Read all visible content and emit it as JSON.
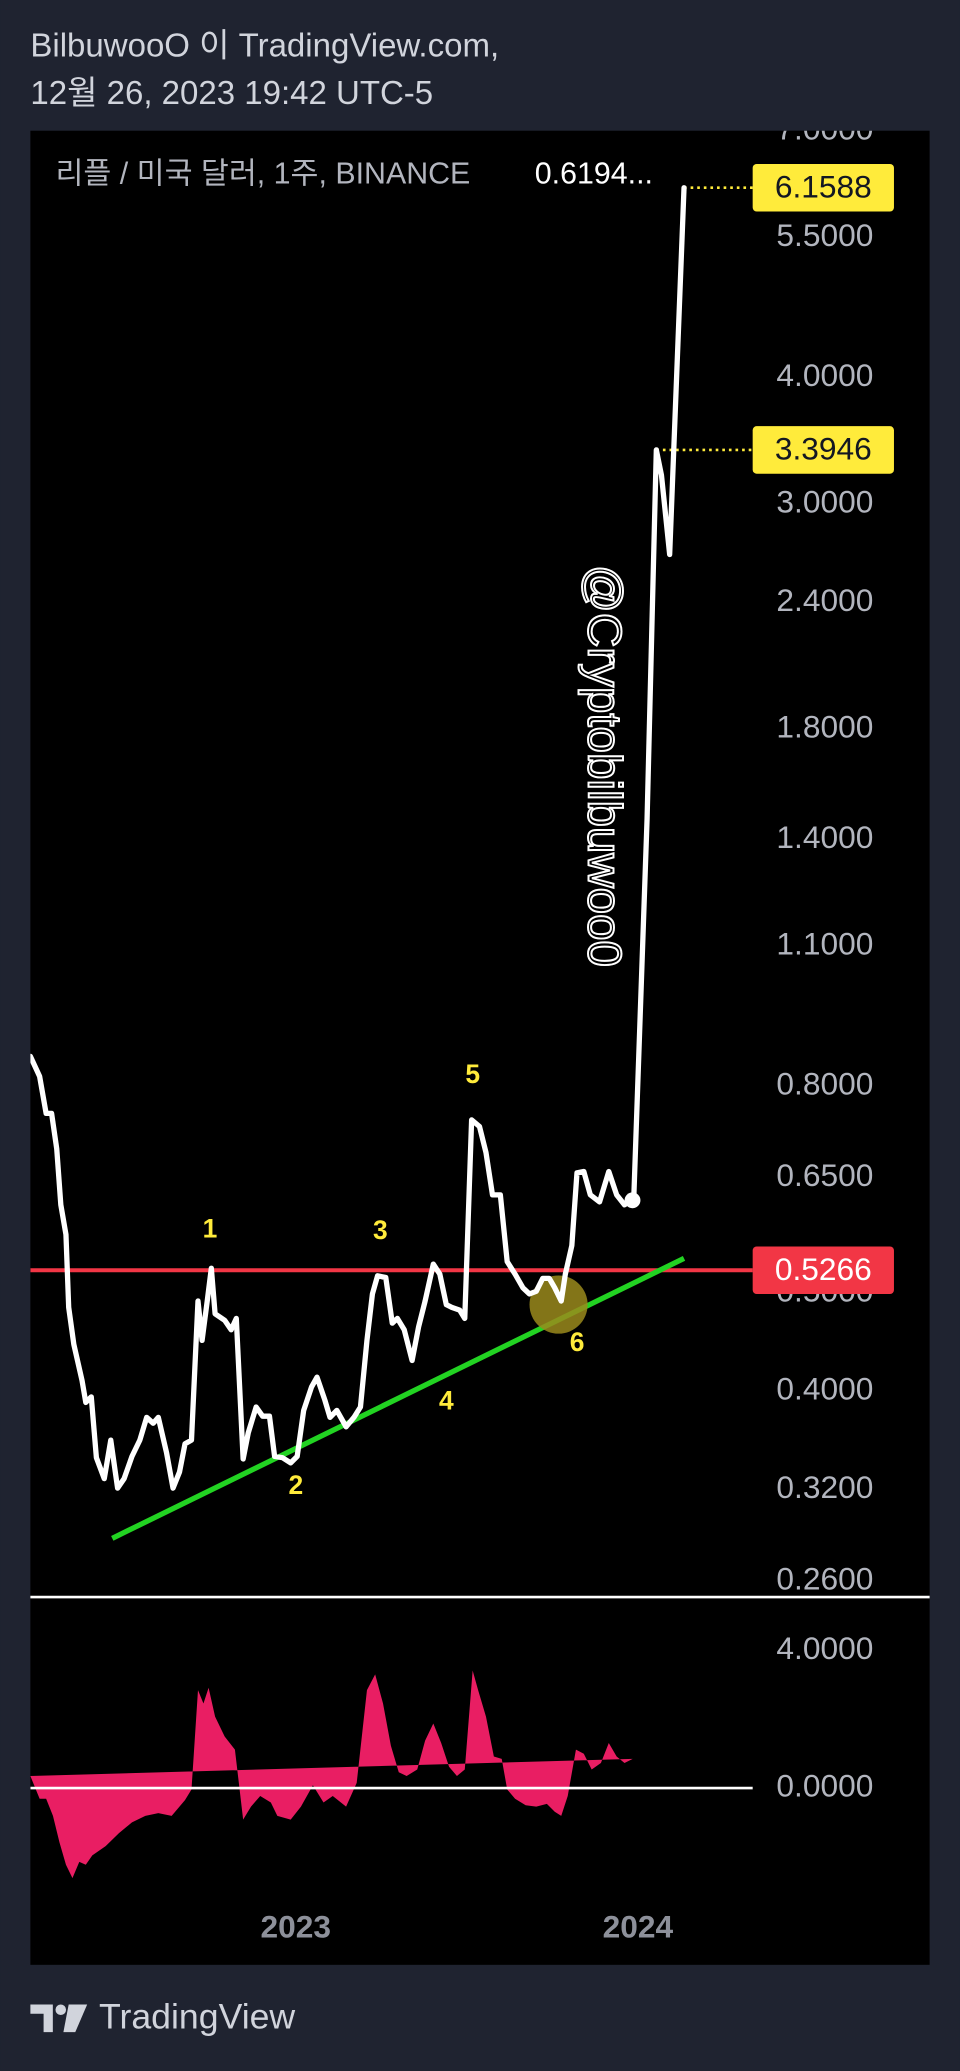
{
  "header": {
    "author": "BilbuwooO 이 TradingView.com,",
    "date": "12월 26, 2023 19:42 UTC-5"
  },
  "footer": {
    "brand": "TradingView"
  },
  "chart_data": [
    {
      "type": "line",
      "title": "리플 / 미국 달러, 1주, BINANCE",
      "last_label": "0.6194...",
      "watermark": "@Cryptobilbuwoo0",
      "annotations": [
        "1",
        "2",
        "3",
        "4",
        "5",
        "6"
      ],
      "annotation_color": "#ffeb3b",
      "log_y": true,
      "grid": false,
      "xlim": [
        2022.224,
        2024.853
      ],
      "ylim": [
        0.251,
        7.01
      ],
      "yticks": [
        {
          "value": 7,
          "label": "7.0000"
        },
        {
          "value": 5.5,
          "label": "5.5000"
        },
        {
          "value": 4,
          "label": "4.0000"
        },
        {
          "value": 3,
          "label": "3.0000"
        },
        {
          "value": 2.4,
          "label": "2.4000"
        },
        {
          "value": 1.8,
          "label": "1.8000"
        },
        {
          "value": 1.4,
          "label": "1.4000"
        },
        {
          "value": 1.1,
          "label": "1.1000"
        },
        {
          "value": 0.8,
          "label": "0.8000"
        },
        {
          "value": 0.65,
          "label": "0.6500"
        },
        {
          "value": 0.5,
          "label": "0.5000"
        },
        {
          "value": 0.4,
          "label": "0.4000"
        },
        {
          "value": 0.32,
          "label": "0.3200"
        },
        {
          "value": 0.26,
          "label": "0.2600"
        }
      ],
      "x": [
        2022.224,
        2022.251,
        2022.27,
        2022.286,
        2022.301,
        2022.313,
        2022.328,
        2022.336,
        2022.351,
        2022.375,
        2022.386,
        2022.402,
        2022.417,
        2022.44,
        2022.459,
        2022.479,
        2022.498,
        2022.521,
        2022.544,
        2022.564,
        2022.583,
        2022.598,
        2022.622,
        2022.641,
        2022.66,
        2022.676,
        2022.695,
        2022.714,
        2022.726,
        2022.741,
        2022.753,
        2022.764,
        2022.792,
        2022.811,
        2022.826,
        2022.846,
        2022.861,
        2022.884,
        2022.903,
        2022.923,
        2022.938,
        2022.961,
        2022.985,
        2023.004,
        2023.023,
        2023.046,
        2023.062,
        2023.085,
        2023.1,
        2023.12,
        2023.147,
        2023.17,
        2023.189,
        2023.208,
        2023.224,
        2023.239,
        2023.263,
        2023.282,
        2023.297,
        2023.317,
        2023.34,
        2023.359,
        2023.378,
        2023.402,
        2023.421,
        2023.44,
        2023.456,
        2023.479,
        2023.494,
        2023.514,
        2023.537,
        2023.556,
        2023.575,
        2023.598,
        2023.618,
        2023.641,
        2023.664,
        2023.683,
        2023.703,
        2023.722,
        2023.741,
        2023.757,
        2023.776,
        2023.788,
        2023.807,
        2023.822,
        2023.842,
        2023.861,
        2023.888,
        2023.915,
        2023.938,
        2023.961,
        2023.988,
        2024.027,
        2024.054,
        2024.069,
        2024.093,
        2024.135
      ],
      "series": [
        {
          "color": "#ffffff",
          "values": [
            0.856,
            0.818,
            0.752,
            0.752,
            0.694,
            0.611,
            0.571,
            0.484,
            0.445,
            0.41,
            0.39,
            0.395,
            0.344,
            0.328,
            0.358,
            0.321,
            0.328,
            0.345,
            0.358,
            0.377,
            0.372,
            0.377,
            0.348,
            0.321,
            0.333,
            0.355,
            0.358,
            0.491,
            0.449,
            0.491,
            0.529,
            0.477,
            0.47,
            0.46,
            0.472,
            0.343,
            0.364,
            0.386,
            0.378,
            0.378,
            0.345,
            0.344,
            0.34,
            0.345,
            0.383,
            0.404,
            0.413,
            0.392,
            0.377,
            0.383,
            0.369,
            0.377,
            0.386,
            0.449,
            0.499,
            0.52,
            0.518,
            0.467,
            0.472,
            0.46,
            0.429,
            0.463,
            0.491,
            0.534,
            0.522,
            0.487,
            0.484,
            0.481,
            0.472,
            0.741,
            0.73,
            0.688,
            0.625,
            0.625,
            0.537,
            0.522,
            0.506,
            0.499,
            0.502,
            0.517,
            0.517,
            0.506,
            0.491,
            0.522,
            0.557,
            0.657,
            0.659,
            0.625,
            0.615,
            0.659,
            0.625,
            0.611,
            0.6194,
            1.469,
            3.3946,
            3.206,
            2.677,
            6.1588
          ]
        }
      ],
      "price_lines": [
        {
          "value": 6.1588,
          "color": "#ffeb3b",
          "text_color": "#131722",
          "style": "dotted"
        },
        {
          "value": 3.3946,
          "color": "#ffeb3b",
          "text_color": "#131722",
          "style": "dotted"
        },
        {
          "value": 0.5266,
          "color": "#f23645",
          "text_color": "#ffffff",
          "style": "solid"
        }
      ]
    },
    {
      "type": "area",
      "color": "#e91e63",
      "grid": false,
      "xlim": [
        2022.224,
        2024.853
      ],
      "xticks": [
        2023,
        2024
      ],
      "ylim": [
        -3.3,
        5.5
      ],
      "yticks": [
        {
          "value": 4,
          "label": "4.0000"
        },
        {
          "value": 0,
          "label": "0.0000"
        }
      ],
      "x": [
        2022.224,
        2022.251,
        2022.27,
        2022.29,
        2022.309,
        2022.328,
        2022.347,
        2022.367,
        2022.386,
        2022.405,
        2022.444,
        2022.483,
        2022.521,
        2022.56,
        2022.598,
        2022.637,
        2022.676,
        2022.695,
        2022.714,
        2022.73,
        2022.745,
        2022.764,
        2022.792,
        2022.822,
        2022.846,
        2022.869,
        2022.896,
        2022.927,
        2022.946,
        2022.985,
        2023.015,
        2023.05,
        2023.081,
        2023.108,
        2023.147,
        2023.178,
        2023.208,
        2023.232,
        2023.255,
        2023.278,
        2023.301,
        2023.324,
        2023.355,
        2023.378,
        2023.402,
        2023.425,
        2023.448,
        2023.471,
        2023.494,
        2023.517,
        2023.533,
        2023.556,
        2023.579,
        2023.602,
        2023.618,
        2023.641,
        2023.672,
        2023.703,
        2023.734,
        2023.757,
        2023.776,
        2023.795,
        2023.819,
        2023.842,
        2023.865,
        2023.892,
        2023.915,
        2023.938,
        2023.961,
        2023.985
      ],
      "values": [
        0.35,
        -0.31,
        -0.31,
        -0.81,
        -1.58,
        -2.23,
        -2.62,
        -2.15,
        -2.23,
        -1.96,
        -1.69,
        -1.31,
        -1.0,
        -0.81,
        -0.73,
        -0.81,
        -0.35,
        -0.04,
        2.85,
        2.46,
        2.92,
        2.08,
        1.5,
        1.12,
        -0.92,
        -0.54,
        -0.23,
        -0.42,
        -0.81,
        -0.92,
        -0.54,
        0.08,
        -0.42,
        -0.23,
        -0.54,
        0.15,
        2.85,
        3.31,
        2.46,
        1.23,
        0.46,
        0.35,
        0.54,
        1.38,
        1.88,
        1.31,
        0.62,
        0.35,
        0.54,
        3.42,
        2.85,
        2.08,
        0.92,
        0.85,
        -0.04,
        -0.31,
        -0.5,
        -0.54,
        -0.46,
        -0.69,
        -0.81,
        -0.23,
        1.12,
        1.0,
        0.54,
        0.73,
        1.31,
        0.92,
        0.73,
        0.85
      ]
    }
  ]
}
